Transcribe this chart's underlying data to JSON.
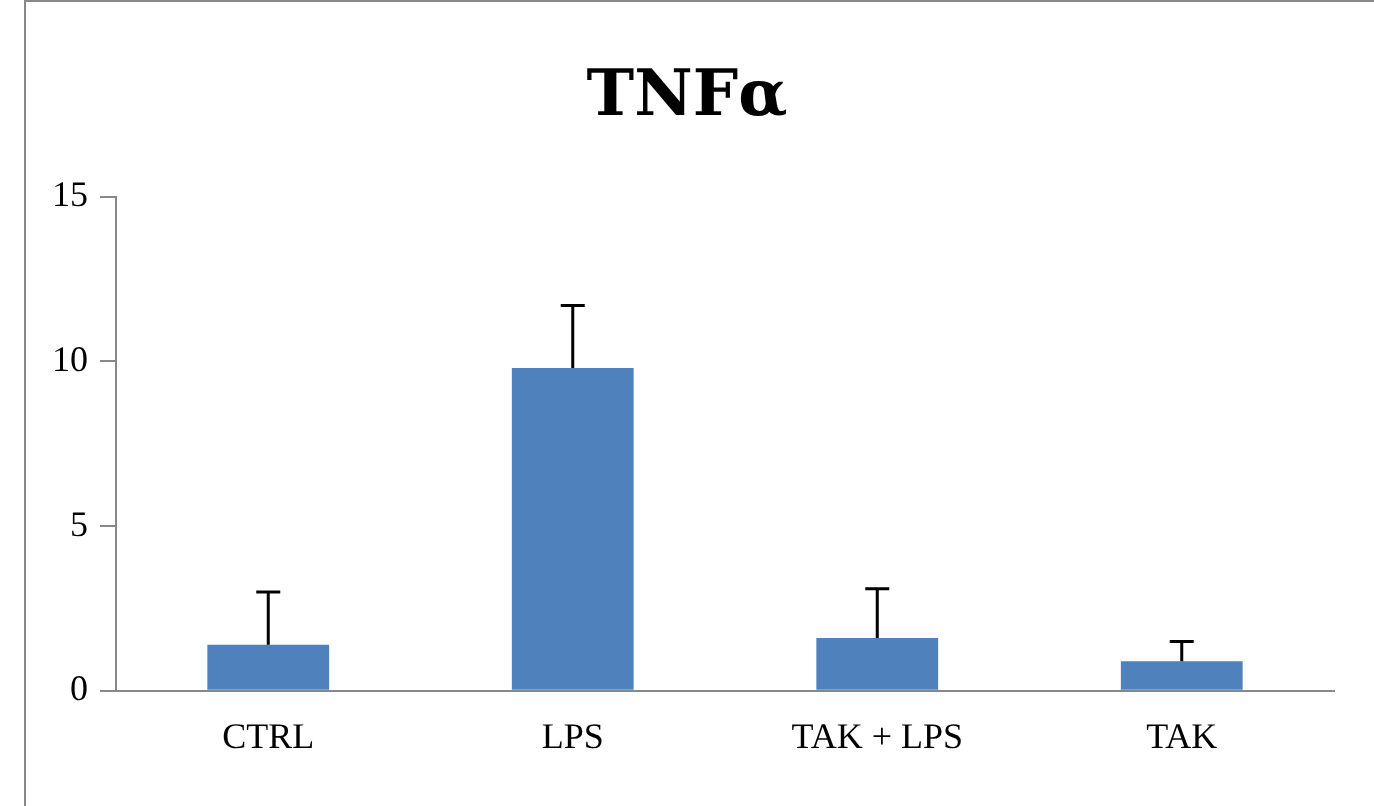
{
  "chart_data": {
    "type": "bar",
    "title": "TNFα",
    "categories": [
      "CTRL",
      "LPS",
      "TAK + LPS",
      "TAK"
    ],
    "values": [
      1.4,
      9.8,
      1.6,
      0.9
    ],
    "errors": [
      [
        1.4,
        3.0
      ],
      [
        9.8,
        11.7
      ],
      [
        1.6,
        3.1
      ],
      [
        0.9,
        1.5
      ]
    ],
    "color": "#4f81bd",
    "ylim": [
      0,
      15
    ],
    "yticks": [
      0,
      5,
      10,
      15
    ],
    "grid": false,
    "legend": false
  }
}
